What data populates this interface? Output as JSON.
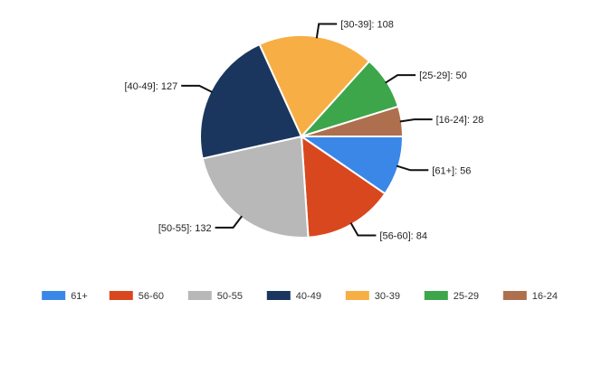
{
  "chart_data": {
    "type": "pie",
    "start_angle_deg": 0,
    "direction": "clockwise",
    "slices": [
      {
        "label": "61+",
        "value": 56,
        "data_label": "[61+]: 56",
        "color": "#3A87E8"
      },
      {
        "label": "56-60",
        "value": 84,
        "data_label": "[56-60]: 84",
        "color": "#D9471E"
      },
      {
        "label": "50-55",
        "value": 132,
        "data_label": "[50-55]: 132",
        "color": "#B8B8B8"
      },
      {
        "label": "40-49",
        "value": 127,
        "data_label": "[40-49]: 127",
        "color": "#1B365E"
      },
      {
        "label": "30-39",
        "value": 108,
        "data_label": "[30-39]: 108",
        "color": "#F7AE45"
      },
      {
        "label": "25-29",
        "value": 50,
        "data_label": "[25-29]: 50",
        "color": "#3DA64A"
      },
      {
        "label": "16-24",
        "value": 28,
        "data_label": "[16-24]: 28",
        "color": "#AE6F4E"
      }
    ],
    "legend_position": "bottom"
  }
}
